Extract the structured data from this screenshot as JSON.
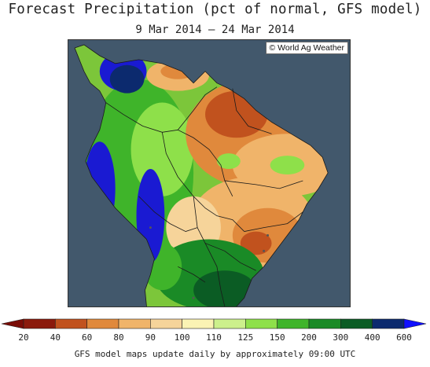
{
  "title": "Forecast Precipitation (pct of normal, GFS model)",
  "subtitle": "9 Mar 2014 – 24 Mar 2014",
  "copyright": "© World Ag Weather",
  "footer": "GFS model maps update daily by approximately 09:00 UTC",
  "colors": {
    "ocean": "#42586c",
    "land_default": "#7cc63a",
    "borders": "#1a1a1a"
  },
  "legend": {
    "ticks": [
      "20",
      "40",
      "60",
      "80",
      "90",
      "100",
      "110",
      "125",
      "150",
      "200",
      "300",
      "400",
      "600"
    ],
    "bins": [
      {
        "color": "#8b1a0c"
      },
      {
        "color": "#c1521e"
      },
      {
        "color": "#e0893c"
      },
      {
        "color": "#f0b46a"
      },
      {
        "color": "#f6d49a"
      },
      {
        "color": "#fbf3b4"
      },
      {
        "color": "#ccf08c"
      },
      {
        "color": "#8ee04a"
      },
      {
        "color": "#3fb42a"
      },
      {
        "color": "#1a8a26"
      },
      {
        "color": "#0b5c24"
      },
      {
        "color": "#0c2a6e"
      },
      {
        "color": "#1a1ad2"
      }
    ],
    "low_arrow_color": "#7a0c06",
    "high_arrow_color": "#1010ff"
  }
}
